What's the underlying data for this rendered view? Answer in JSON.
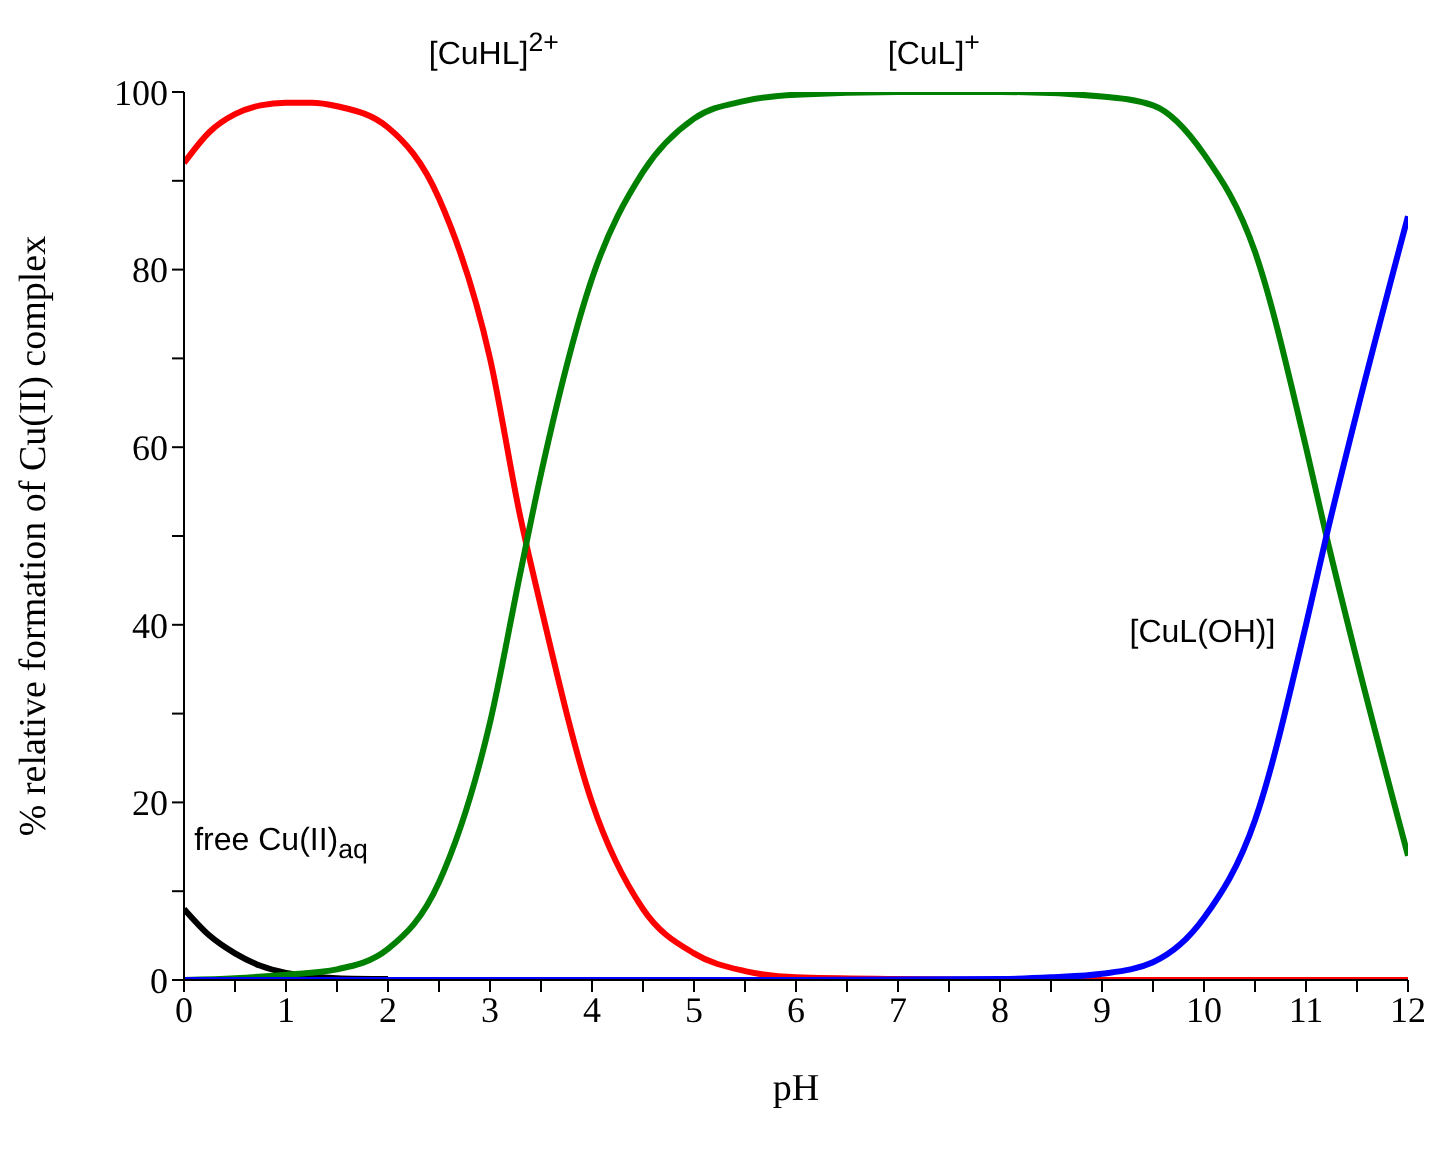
{
  "chart_data": {
    "type": "line",
    "xlabel": "pH",
    "ylabel": "% relative formation of Cu(II) complex",
    "xlim": [
      0,
      12
    ],
    "ylim": [
      0,
      100
    ],
    "xticks": [
      0,
      {
        "value": 0.5,
        "label": null
      },
      1,
      {
        "value": 1.5,
        "label": null
      },
      2,
      {
        "value": 2.5,
        "label": null
      },
      3,
      {
        "value": 3.5,
        "label": null
      },
      4,
      {
        "value": 4.5,
        "label": null
      },
      5,
      {
        "value": 5.5,
        "label": null
      },
      6,
      {
        "value": 6.5,
        "label": null
      },
      7,
      {
        "value": 7.5,
        "label": null
      },
      8,
      {
        "value": 8.5,
        "label": null
      },
      9,
      {
        "value": 9.5,
        "label": null
      },
      10,
      {
        "value": 10.5,
        "label": null
      },
      11,
      {
        "value": 11.5,
        "label": null
      },
      12
    ],
    "yticks": [
      0,
      {
        "value": 10,
        "label": null
      },
      20,
      {
        "value": 30,
        "label": null
      },
      40,
      {
        "value": 50,
        "label": null
      },
      60,
      {
        "value": 70,
        "label": null
      },
      80,
      {
        "value": 90,
        "label": null
      },
      100
    ],
    "marker": "none",
    "line_style": "solid",
    "series": [
      {
        "name": "free Cu(II)$_{aq}$",
        "color": "#000000",
        "x": [
          0,
          0.25,
          0.5,
          0.75,
          1,
          1.25,
          1.5,
          2
        ],
        "values": [
          8,
          5,
          3,
          1.6,
          0.8,
          0.4,
          0.2,
          0.1
        ]
      },
      {
        "name": "[CuHL]$^{2+}$",
        "color": "#ff0000",
        "x": [
          0,
          0.25,
          0.5,
          0.75,
          1,
          1.25,
          1.5,
          2,
          2.5,
          3,
          3.3,
          3.5,
          4,
          4.5,
          5,
          5.5,
          6,
          7,
          8,
          9,
          10,
          11,
          12
        ],
        "values": [
          92,
          95.5,
          97.5,
          98.5,
          98.8,
          98.8,
          98.4,
          96,
          88,
          70,
          52,
          42,
          20,
          8,
          3,
          1,
          0.3,
          0.1,
          0,
          0,
          0,
          0,
          0
        ]
      },
      {
        "name": "[CuL]$^{+}$",
        "color": "#008000",
        "x": [
          0,
          0.5,
          1,
          1.5,
          2,
          2.5,
          3,
          3.3,
          3.5,
          4,
          4.5,
          5,
          5.5,
          6,
          7,
          8,
          9,
          9.5,
          10,
          10.5,
          11,
          11.2,
          11.5,
          12
        ],
        "values": [
          0,
          0.2,
          0.6,
          1.2,
          3.5,
          11,
          29,
          46,
          57,
          79,
          91,
          97,
          99,
          99.7,
          100,
          100,
          99.5,
          98.5,
          93,
          82,
          60,
          50,
          36,
          14
        ]
      },
      {
        "name": "[CuL(OH)]",
        "color": "#0000ff",
        "x": [
          0,
          2,
          4,
          6,
          8,
          8.5,
          9,
          9.5,
          10,
          10.5,
          11,
          11.2,
          11.5,
          12
        ],
        "values": [
          0,
          0,
          0,
          0,
          0.1,
          0.3,
          0.7,
          2,
          7,
          18,
          40,
          50,
          64,
          86
        ]
      }
    ]
  }
}
